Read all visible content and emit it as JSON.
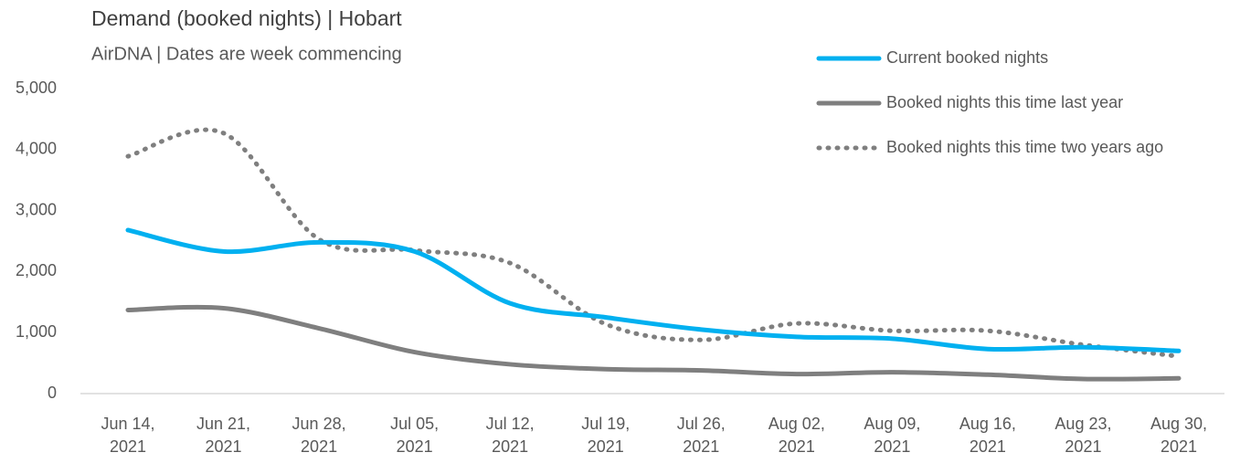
{
  "chart_data": {
    "type": "line",
    "title": "Demand (booked nights) | Hobart",
    "subtitle": "AirDNA | Dates are week commencing",
    "categories": [
      "Jun 14, 2021",
      "Jun 21, 2021",
      "Jun 28, 2021",
      "Jul 05, 2021",
      "Jul 12, 2021",
      "Jul 19, 2021",
      "Jul 26, 2021",
      "Aug 02, 2021",
      "Aug 09, 2021",
      "Aug 16, 2021",
      "Aug 23, 2021",
      "Aug 30, 2021"
    ],
    "series": [
      {
        "name": "Current booked nights",
        "color": "#00b0f0",
        "style": "solid",
        "values": [
          2680,
          2330,
          2480,
          2330,
          1480,
          1250,
          1050,
          930,
          900,
          730,
          760,
          700
        ]
      },
      {
        "name": "Booked nights this time last year",
        "color": "#7f7f7f",
        "style": "solid",
        "values": [
          1370,
          1400,
          1070,
          680,
          480,
          400,
          380,
          320,
          350,
          310,
          240,
          250
        ]
      },
      {
        "name": "Booked nights this time two years ago",
        "color": "#7f7f7f",
        "style": "dotted",
        "values": [
          3890,
          4270,
          2530,
          2350,
          2140,
          1140,
          880,
          1150,
          1030,
          1030,
          800,
          610
        ]
      }
    ],
    "ylim": [
      0,
      5000
    ],
    "yticks": [
      0,
      {
        "value": 1000,
        "label": "1,000"
      },
      {
        "value": 2000,
        "label": "2,000"
      },
      {
        "value": 3000,
        "label": "3,000"
      },
      {
        "value": 4000,
        "label": "4,000"
      },
      {
        "value": 5000,
        "label": "5,000"
      }
    ],
    "grid": false,
    "legend": "top-right"
  }
}
